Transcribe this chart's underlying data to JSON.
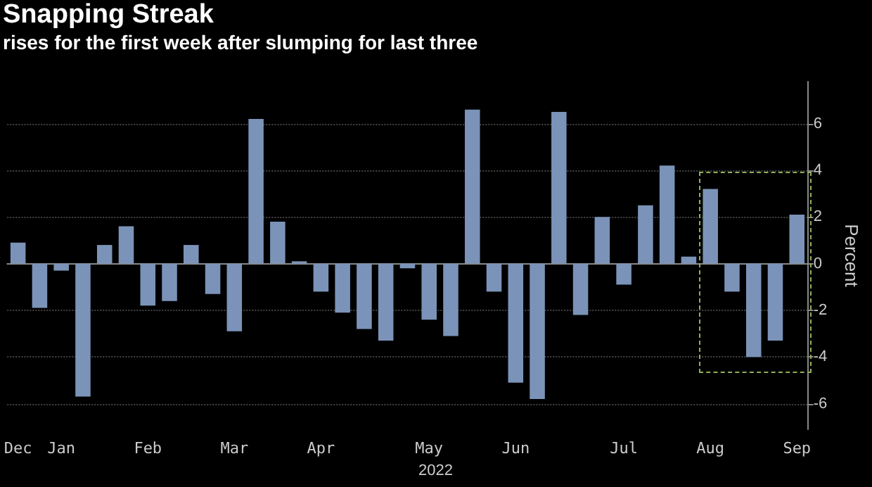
{
  "chart_data": {
    "type": "bar",
    "title": "Snapping Streak",
    "subtitle": "rises for the first week after slumping for last three",
    "ylabel": "Percent",
    "xlabel": "2022",
    "categories": [
      "Dec",
      null,
      "Jan",
      null,
      null,
      null,
      "Feb",
      null,
      null,
      null,
      "Mar",
      null,
      null,
      null,
      "Apr",
      null,
      null,
      null,
      null,
      "May",
      null,
      null,
      null,
      "Jun",
      null,
      null,
      null,
      null,
      "Jul",
      null,
      null,
      null,
      "Aug",
      null,
      null,
      null,
      "Sep"
    ],
    "values": [
      0.9,
      -1.9,
      -0.3,
      -5.7,
      0.8,
      1.6,
      -1.8,
      -1.6,
      0.8,
      -1.3,
      -2.9,
      6.2,
      1.8,
      0.1,
      -1.2,
      -2.1,
      -2.8,
      -3.3,
      -0.2,
      -2.4,
      -3.1,
      6.6,
      -1.2,
      -5.1,
      -5.8,
      6.5,
      -2.2,
      2.0,
      -0.9,
      2.5,
      4.2,
      0.3,
      3.2,
      -1.2,
      -4.0,
      -3.3,
      2.1
    ],
    "color": "#7b93b8",
    "ylim": [
      -7.1,
      7.8
    ],
    "yticks": [
      -6,
      -4,
      -2,
      0,
      2,
      4,
      6
    ],
    "grid": "y"
  }
}
